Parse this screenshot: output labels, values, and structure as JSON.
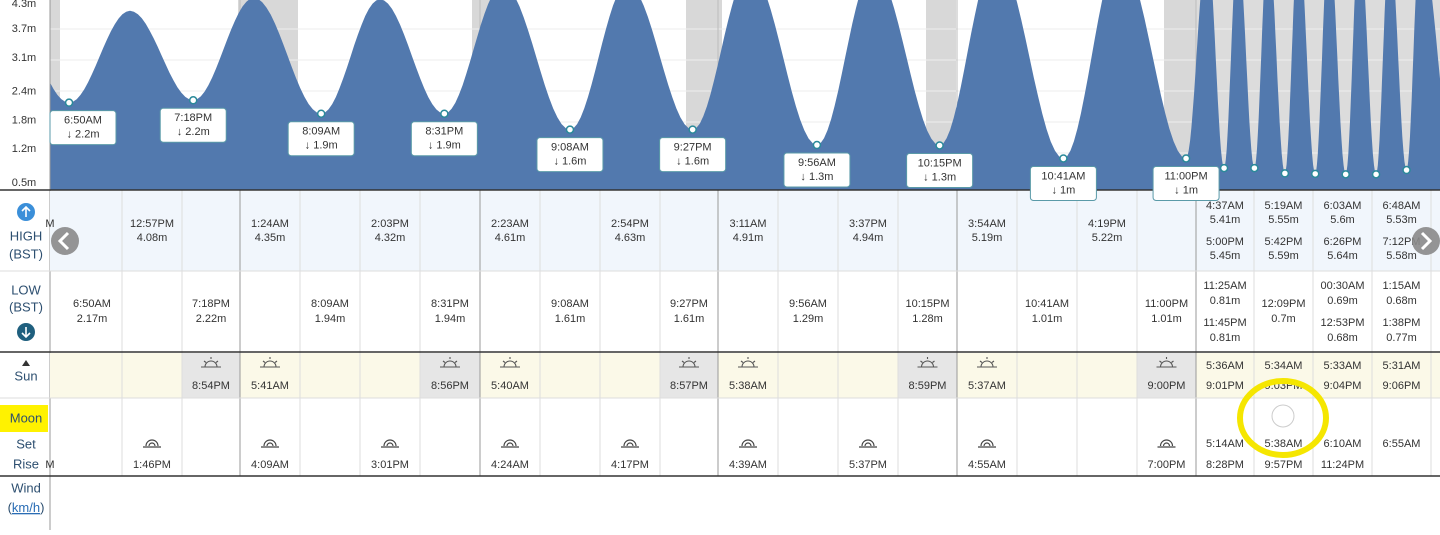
{
  "chart": {
    "yticks": [
      "4.3m",
      "3.7m",
      "3.1m",
      "2.4m",
      "1.8m",
      "1.2m",
      "0.5m"
    ],
    "callouts": [
      {
        "time": "6:50AM",
        "height": "↓ 2.2m"
      },
      {
        "time": "7:18PM",
        "height": "↓ 2.2m"
      },
      {
        "time": "8:09AM",
        "height": "↓ 1.9m"
      },
      {
        "time": "8:31PM",
        "height": "↓ 1.9m"
      },
      {
        "time": "9:08AM",
        "height": "↓ 1.6m"
      },
      {
        "time": "9:27PM",
        "height": "↓ 1.6m"
      },
      {
        "time": "9:56AM",
        "height": "↓ 1.3m"
      },
      {
        "time": "10:15PM",
        "height": "↓ 1.3m"
      },
      {
        "time": "10:41AM",
        "height": "↓ 1m"
      },
      {
        "time": "11:00PM",
        "height": "↓ 1m"
      }
    ]
  },
  "labels": {
    "high": "HIGH",
    "high_tz": "(BST)",
    "low": "LOW",
    "low_tz": "(BST)",
    "sun": "Sun",
    "moon": "Moon",
    "set": "Set",
    "rise": "Rise",
    "wind": "Wind",
    "wind_open": "(",
    "wind_unit": "km/h",
    "wind_close": ")"
  },
  "columns": [
    {
      "high": [
        {
          "time": "M"
        }
      ],
      "low": [
        {
          "time": "6:50AM",
          "height": "2.17m"
        }
      ],
      "sun": [],
      "moon": [
        "M"
      ]
    },
    {
      "high": [
        {
          "time": "12:57PM",
          "height": "4.08m"
        }
      ],
      "low": [],
      "sun": [],
      "moon": [
        "1:46PM"
      ]
    },
    {
      "high": [],
      "low": [
        {
          "time": "7:18PM",
          "height": "2.22m"
        }
      ],
      "sun": [
        "8:54PM"
      ],
      "moon": []
    },
    {
      "high": [
        {
          "time": "1:24AM",
          "height": "4.35m"
        }
      ],
      "low": [],
      "sun": [
        "5:41AM"
      ],
      "moon": [
        "4:09AM"
      ]
    },
    {
      "high": [],
      "low": [
        {
          "time": "8:09AM",
          "height": "1.94m"
        }
      ],
      "sun": [],
      "moon": []
    },
    {
      "high": [
        {
          "time": "2:03PM",
          "height": "4.32m"
        }
      ],
      "low": [],
      "sun": [],
      "moon": [
        "3:01PM"
      ]
    },
    {
      "high": [],
      "low": [
        {
          "time": "8:31PM",
          "height": "1.94m"
        }
      ],
      "sun": [
        "8:56PM"
      ],
      "moon": []
    },
    {
      "high": [
        {
          "time": "2:23AM",
          "height": "4.61m"
        }
      ],
      "low": [],
      "sun": [
        "5:40AM"
      ],
      "moon": [
        "4:24AM"
      ]
    },
    {
      "high": [],
      "low": [
        {
          "time": "9:08AM",
          "height": "1.61m"
        }
      ],
      "sun": [],
      "moon": []
    },
    {
      "high": [
        {
          "time": "2:54PM",
          "height": "4.63m"
        }
      ],
      "low": [],
      "sun": [],
      "moon": [
        "4:17PM"
      ]
    },
    {
      "high": [],
      "low": [
        {
          "time": "9:27PM",
          "height": "1.61m"
        }
      ],
      "sun": [
        "8:57PM"
      ],
      "moon": []
    },
    {
      "high": [
        {
          "time": "3:11AM",
          "height": "4.91m"
        }
      ],
      "low": [],
      "sun": [
        "5:38AM"
      ],
      "moon": [
        "4:39AM"
      ]
    },
    {
      "high": [],
      "low": [
        {
          "time": "9:56AM",
          "height": "1.29m"
        }
      ],
      "sun": [],
      "moon": []
    },
    {
      "high": [
        {
          "time": "3:37PM",
          "height": "4.94m"
        }
      ],
      "low": [],
      "sun": [],
      "moon": [
        "5:37PM"
      ]
    },
    {
      "high": [],
      "low": [
        {
          "time": "10:15PM",
          "height": "1.28m"
        }
      ],
      "sun": [
        "8:59PM"
      ],
      "moon": []
    },
    {
      "high": [
        {
          "time": "3:54AM",
          "height": "5.19m"
        }
      ],
      "low": [],
      "sun": [
        "5:37AM"
      ],
      "moon": [
        "4:55AM"
      ]
    },
    {
      "high": [],
      "low": [
        {
          "time": "10:41AM",
          "height": "1.01m"
        }
      ],
      "sun": [],
      "moon": []
    },
    {
      "high": [
        {
          "time": "4:19PM",
          "height": "5.22m"
        }
      ],
      "low": [],
      "sun": [],
      "moon": []
    },
    {
      "high": [],
      "low": [
        {
          "time": "11:00PM",
          "height": "1.01m"
        }
      ],
      "sun": [
        "9:00PM"
      ],
      "moon": [
        "7:00PM"
      ]
    },
    {
      "high": [
        {
          "time": "4:37AM",
          "height": "5.41m"
        },
        {
          "time": "5:00PM",
          "height": "5.45m"
        }
      ],
      "low": [
        {
          "time": "11:25AM",
          "height": "0.81m"
        },
        {
          "time": "11:45PM",
          "height": "0.81m"
        }
      ],
      "sun": [
        "5:36AM",
        "9:01PM"
      ],
      "moon": [
        "5:14AM",
        "8:28PM"
      ]
    },
    {
      "high": [
        {
          "time": "5:19AM",
          "height": "5.55m"
        },
        {
          "time": "5:42PM",
          "height": "5.59m"
        }
      ],
      "low": [
        {
          "time": "12:09PM",
          "height": "0.7m"
        }
      ],
      "sun": [
        "5:34AM",
        "9:03PM"
      ],
      "moon": [
        "5:38AM",
        "9:57PM"
      ]
    },
    {
      "high": [
        {
          "time": "6:03AM",
          "height": "5.6m"
        },
        {
          "time": "6:26PM",
          "height": "5.64m"
        }
      ],
      "low": [
        {
          "time": "00:30AM",
          "height": "0.69m"
        },
        {
          "time": "12:53PM",
          "height": "0.68m"
        }
      ],
      "sun": [
        "5:33AM",
        "9:04PM"
      ],
      "moon": [
        "6:10AM",
        "11:24PM"
      ]
    },
    {
      "high": [
        {
          "time": "6:48AM",
          "height": "5.53m"
        },
        {
          "time": "7:12PM",
          "height": "5.58m"
        }
      ],
      "low": [
        {
          "time": "1:15AM",
          "height": "0.68m"
        },
        {
          "time": "1:38PM",
          "height": "0.77m"
        }
      ],
      "sun": [
        "5:31AM",
        "9:06PM"
      ],
      "moon": [
        "6:55AM"
      ]
    }
  ]
}
